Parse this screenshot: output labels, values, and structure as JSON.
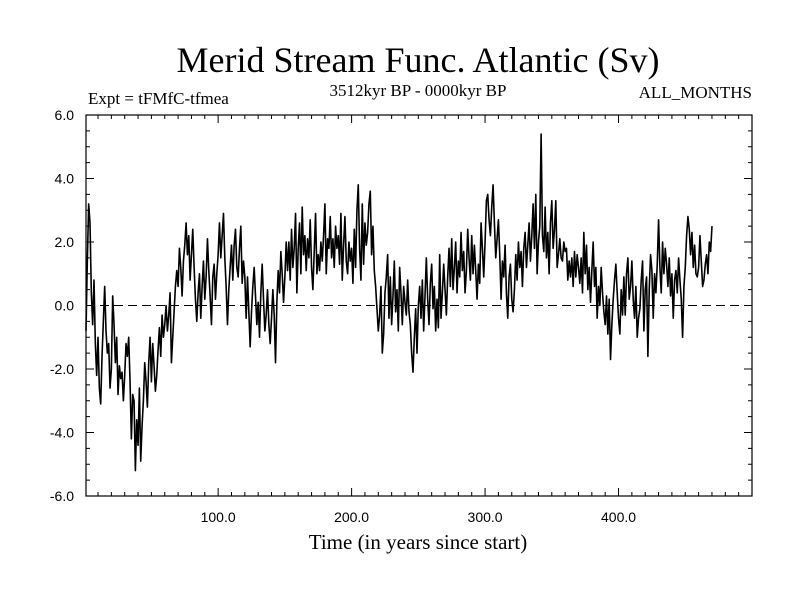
{
  "chart_data": {
    "type": "line",
    "title": "Merid Stream Func. Atlantic (Sv)",
    "subtitle_left": "Expt = tFMfC-tfmea",
    "subtitle_center": "3512kyr BP - 0000kyr BP",
    "subtitle_right": "ALL_MONTHS",
    "xlabel": "Time (in years since start)",
    "ylabel": "",
    "xlim": [
      1,
      500
    ],
    "ylim": [
      -6.0,
      6.0
    ],
    "xticks": [
      100,
      200,
      300,
      400
    ],
    "xtick_labels": [
      "100.0",
      "200.0",
      "300.0",
      "400.0"
    ],
    "yticks": [
      6,
      4,
      2,
      0,
      -2,
      -4,
      -6
    ],
    "ytick_labels": [
      "6.0",
      "4.0",
      "2.0",
      "0.0",
      "-2.0",
      "-4.0",
      "-6.0"
    ],
    "reference_line": 0.0,
    "grid": false,
    "series": [
      {
        "name": "Merid Stream Func. Atlantic",
        "x_start": 1,
        "x_step": 1,
        "values": [
          -0.8,
          1.4,
          3.2,
          2.6,
          0.4,
          -0.6,
          0.8,
          -1.2,
          -2.2,
          -1.0,
          -2.6,
          -3.1,
          -1.6,
          -0.5,
          0.6,
          -0.8,
          -1.5,
          -1.2,
          -2.6,
          -2.0,
          0.3,
          -0.6,
          -1.8,
          -1.0,
          -2.8,
          -1.9,
          -2.3,
          -2.1,
          -3.0,
          -2.2,
          -1.2,
          -1.6,
          -1.0,
          -2.4,
          -4.2,
          -2.8,
          -3.0,
          -5.2,
          -3.6,
          -4.4,
          -2.6,
          -4.9,
          -3.8,
          -3.0,
          -1.8,
          -2.4,
          -3.2,
          -1.8,
          -1.0,
          -2.4,
          -1.2,
          -1.9,
          -2.7,
          -2.2,
          -1.4,
          -0.7,
          -1.6,
          -0.3,
          -1.0,
          -0.6,
          0.0,
          -0.8,
          -0.3,
          0.4,
          -1.8,
          -1.0,
          -0.2,
          0.6,
          1.1,
          0.6,
          1.8,
          1.2,
          0.3,
          1.4,
          1.9,
          2.6,
          1.6,
          2.2,
          0.8,
          1.6,
          2.4,
          1.2,
          0.2,
          -0.5,
          0.4,
          1.0,
          -0.4,
          0.6,
          1.4,
          0.2,
          0.9,
          2.1,
          1.1,
          0.3,
          -0.6,
          0.9,
          1.3,
          0.2,
          1.0,
          1.6,
          2.6,
          1.5,
          2.2,
          2.9,
          1.5,
          0.6,
          -0.6,
          0.5,
          1.2,
          1.9,
          0.8,
          1.9,
          2.4,
          1.2,
          0.9,
          1.8,
          2.5,
          0.7,
          1.4,
          0.9,
          -0.4,
          0.9,
          -0.2,
          -1.3,
          -0.2,
          0.6,
          1.2,
          0.3,
          -0.6,
          0.1,
          -1.0,
          0.4,
          1.3,
          0.2,
          -0.8,
          -0.3,
          0.5,
          -0.6,
          -1.2,
          -0.4,
          0.5,
          -0.3,
          -1.8,
          0.1,
          1.1,
          0.4,
          1.7,
          1.0,
          0.1,
          0.9,
          2.0,
          1.1,
          2.0,
          0.8,
          2.4,
          1.2,
          1.8,
          2.9,
          0.4,
          1.8,
          2.6,
          1.0,
          3.1,
          1.6,
          2.2,
          1.1,
          2.1,
          1.5,
          2.7,
          1.2,
          0.5,
          1.7,
          2.9,
          1.0,
          1.6,
          1.1,
          2.0,
          1.4,
          2.2,
          3.2,
          1.0,
          2.1,
          1.8,
          2.8,
          1.5,
          2.1,
          1.2,
          2.5,
          1.8,
          2.2,
          1.3,
          2.9,
          0.8,
          1.9,
          2.8,
          1.4,
          1.0,
          2.0,
          1.4,
          1.8,
          0.7,
          2.4,
          1.2,
          3.0,
          3.8,
          1.8,
          0.8,
          3.2,
          1.3,
          2.6,
          1.9,
          2.3,
          3.2,
          3.6,
          1.6,
          2.5,
          1.1,
          0.6,
          -0.1,
          -0.8,
          -0.3,
          0.6,
          -1.5,
          -0.9,
          0.4,
          0.9,
          1.6,
          -0.4,
          0.9,
          -0.6,
          0.3,
          1.4,
          -0.2,
          0.5,
          -0.8,
          1.2,
          0.4,
          -0.6,
          0.6,
          0.1,
          -0.3,
          0.8,
          -0.2,
          -0.6,
          -1.5,
          -2.1,
          -1.0,
          -0.1,
          -1.5,
          0.0,
          0.6,
          -0.4,
          0.8,
          -0.8,
          0.3,
          1.5,
          0.2,
          -0.6,
          0.7,
          1.3,
          -0.1,
          0.6,
          -0.8,
          0.2,
          -0.7,
          1.6,
          -0.4,
          0.4,
          1.3,
          0.5,
          -0.3,
          0.9,
          1.8,
          0.6,
          2.1,
          0.5,
          1.2,
          2.0,
          0.4,
          1.4,
          0.9,
          2.3,
          1.1,
          1.7,
          0.4,
          1.1,
          2.4,
          1.5,
          0.8,
          2.2,
          1.0,
          1.9,
          1.1,
          0.2,
          1.3,
          0.7,
          2.6,
          1.8,
          0.9,
          2.0,
          3.3,
          3.5,
          2.7,
          2.2,
          3.1,
          3.8,
          2.6,
          1.5,
          2.1,
          2.7,
          1.6,
          0.2,
          1.4,
          0.9,
          1.9,
          0.4,
          -0.4,
          0.9,
          1.3,
          0.2,
          -0.2,
          0.5,
          1.6,
          0.8,
          2.0,
          1.2,
          1.7,
          0.6,
          1.8,
          2.3,
          1.2,
          1.9,
          2.6,
          1.4,
          2.2,
          3.2,
          1.8,
          3.5,
          1.0,
          2.0,
          2.5,
          5.4,
          2.2,
          1.7,
          3.1,
          1.5,
          2.3,
          1.0,
          2.6,
          3.3,
          1.8,
          2.4,
          3.3,
          1.2,
          1.6,
          2.1,
          1.5,
          1.4,
          2.0,
          1.7,
          1.8,
          0.8,
          1.4,
          0.9,
          1.5,
          0.6,
          1.7,
          0.9,
          1.6,
          1.2,
          0.7,
          1.5,
          0.4,
          2.3,
          1.0,
          1.9,
          0.5,
          1.2,
          0.1,
          1.1,
          2.0,
          0.6,
          1.2,
          -0.4,
          0.6,
          0.0,
          1.2,
          0.4,
          -0.2,
          -0.6,
          0.3,
          -0.9,
          0.2,
          -1.7,
          -0.6,
          0.2,
          0.8,
          1.3,
          0.4,
          -0.4,
          -0.9,
          0.5,
          -0.3,
          0.9,
          -0.3,
          1.0,
          1.5,
          0.2,
          0.6,
          1.4,
          0.2,
          -0.4,
          0.6,
          -1.0,
          -0.4,
          -0.1,
          0.8,
          1.4,
          -0.8,
          0.5,
          0.9,
          -1.6,
          0.5,
          1.6,
          1.1,
          -0.4,
          1.0,
          0.4,
          1.3,
          2.7,
          1.2,
          0.4,
          2.0,
          1.0,
          1.8,
          1.3,
          0.6,
          1.5,
          0.3,
          1.0,
          -0.4,
          0.8,
          1.1,
          0.4,
          1.5,
          0.8,
          0.2,
          -1.0,
          0.6,
          1.2,
          2.2,
          2.8,
          2.4,
          1.6,
          2.3,
          1.2,
          1.9,
          1.0,
          0.9,
          1.2,
          2.2,
          1.4,
          0.6,
          0.8,
          1.3,
          1.6,
          1.0,
          2.0,
          1.7,
          2.5
        ]
      }
    ]
  }
}
